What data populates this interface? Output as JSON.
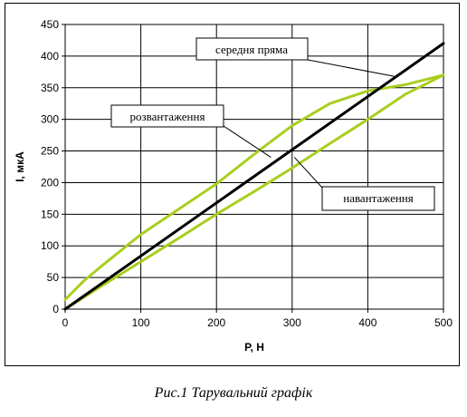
{
  "caption": "Рис.1 Тарувальний графік",
  "chart_data": {
    "type": "line",
    "xlabel": "P, H",
    "ylabel": "I, мкА",
    "xlim": [
      0,
      500
    ],
    "ylim": [
      0,
      450
    ],
    "xticks": [
      0,
      100,
      200,
      300,
      400,
      500
    ],
    "yticks": [
      0,
      50,
      100,
      150,
      200,
      250,
      300,
      350,
      400,
      450
    ],
    "grid": true,
    "series": [
      {
        "name": "розвантаження",
        "color": "#a8cf1e",
        "x": [
          0,
          25,
          50,
          100,
          150,
          200,
          250,
          300,
          350,
          400,
          450,
          500
        ],
        "y": [
          15,
          45,
          70,
          118,
          158,
          198,
          245,
          290,
          325,
          345,
          355,
          370
        ]
      },
      {
        "name": "навантаження",
        "color": "#a8cf1e",
        "x": [
          0,
          50,
          100,
          150,
          200,
          250,
          300,
          350,
          400,
          450,
          500
        ],
        "y": [
          0,
          38,
          75,
          112,
          150,
          186,
          223,
          262,
          300,
          340,
          370
        ]
      },
      {
        "name": "середня пряма",
        "color": "#000000",
        "x": [
          0,
          500
        ],
        "y": [
          0,
          420
        ]
      }
    ],
    "annotations": [
      {
        "text": "середня пряма",
        "target": [
          435,
          368
        ]
      },
      {
        "text": "розвантаження",
        "target": [
          272,
          240
        ]
      },
      {
        "text": "навантаження",
        "target": [
          303,
          240
        ]
      }
    ]
  }
}
